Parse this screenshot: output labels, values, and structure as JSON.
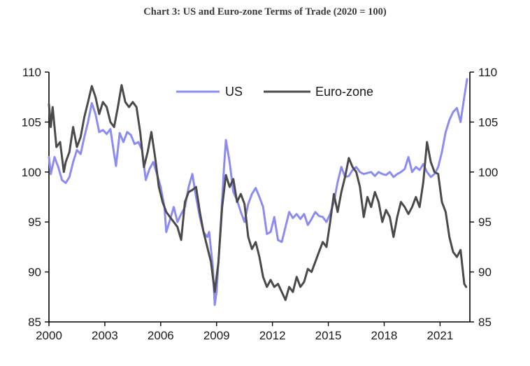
{
  "chart_data": {
    "type": "line",
    "title": "Chart 3: US and Euro-zone Terms of Trade (2020 = 100)",
    "xlabel": "",
    "ylabel": "",
    "x_ticks": [
      "2000",
      "2003",
      "2006",
      "2009",
      "2012",
      "2015",
      "2018",
      "2021"
    ],
    "xlim": [
      2000,
      2022.6
    ],
    "ylim": [
      85,
      110
    ],
    "y_ticks": [
      85,
      90,
      95,
      100,
      105,
      110
    ],
    "y_ticks_right": [
      85,
      90,
      95,
      100,
      105,
      110
    ],
    "legend_position": "top-center",
    "series": [
      {
        "name": "US",
        "color": "#8c8cf0",
        "points": [
          [
            2000.0,
            101.5
          ],
          [
            2000.1,
            99.8
          ],
          [
            2000.3,
            101.5
          ],
          [
            2000.5,
            100.5
          ],
          [
            2000.7,
            99.2
          ],
          [
            2000.9,
            98.9
          ],
          [
            2001.1,
            99.5
          ],
          [
            2001.3,
            101.0
          ],
          [
            2001.5,
            102.2
          ],
          [
            2001.7,
            101.8
          ],
          [
            2001.9,
            103.5
          ],
          [
            2002.1,
            105.0
          ],
          [
            2002.3,
            106.9
          ],
          [
            2002.5,
            105.8
          ],
          [
            2002.7,
            104.0
          ],
          [
            2002.9,
            104.2
          ],
          [
            2003.1,
            103.8
          ],
          [
            2003.3,
            104.3
          ],
          [
            2003.5,
            101.8
          ],
          [
            2003.6,
            100.6
          ],
          [
            2003.8,
            103.9
          ],
          [
            2004.0,
            103.0
          ],
          [
            2004.2,
            104.0
          ],
          [
            2004.4,
            103.7
          ],
          [
            2004.6,
            102.8
          ],
          [
            2004.8,
            103.0
          ],
          [
            2005.0,
            102.2
          ],
          [
            2005.2,
            99.2
          ],
          [
            2005.4,
            100.3
          ],
          [
            2005.6,
            101.0
          ],
          [
            2005.8,
            99.8
          ],
          [
            2006.0,
            98.5
          ],
          [
            2006.2,
            96.5
          ],
          [
            2006.3,
            94.0
          ],
          [
            2006.5,
            95.2
          ],
          [
            2006.7,
            96.5
          ],
          [
            2006.9,
            95.0
          ],
          [
            2007.1,
            95.8
          ],
          [
            2007.3,
            96.5
          ],
          [
            2007.5,
            98.5
          ],
          [
            2007.7,
            99.8
          ],
          [
            2007.9,
            97.5
          ],
          [
            2008.1,
            95.5
          ],
          [
            2008.3,
            94.0
          ],
          [
            2008.5,
            93.5
          ],
          [
            2008.6,
            94.0
          ],
          [
            2008.8,
            90.5
          ],
          [
            2008.9,
            86.7
          ],
          [
            2009.0,
            88.0
          ],
          [
            2009.2,
            94.0
          ],
          [
            2009.4,
            100.5
          ],
          [
            2009.5,
            103.2
          ],
          [
            2009.7,
            101.0
          ],
          [
            2009.9,
            98.0
          ],
          [
            2010.1,
            97.2
          ],
          [
            2010.3,
            96.0
          ],
          [
            2010.5,
            95.0
          ],
          [
            2010.7,
            96.8
          ],
          [
            2010.9,
            97.8
          ],
          [
            2011.1,
            98.4
          ],
          [
            2011.3,
            97.5
          ],
          [
            2011.5,
            96.5
          ],
          [
            2011.7,
            93.8
          ],
          [
            2011.9,
            94.0
          ],
          [
            2012.1,
            95.5
          ],
          [
            2012.3,
            93.2
          ],
          [
            2012.5,
            93.0
          ],
          [
            2012.7,
            94.5
          ],
          [
            2012.9,
            96.0
          ],
          [
            2013.1,
            95.4
          ],
          [
            2013.3,
            95.8
          ],
          [
            2013.5,
            95.3
          ],
          [
            2013.7,
            95.8
          ],
          [
            2013.9,
            94.7
          ],
          [
            2014.1,
            95.3
          ],
          [
            2014.3,
            96.0
          ],
          [
            2014.5,
            95.6
          ],
          [
            2014.7,
            95.5
          ],
          [
            2014.9,
            95.0
          ],
          [
            2015.1,
            95.8
          ],
          [
            2015.3,
            97.0
          ],
          [
            2015.5,
            99.0
          ],
          [
            2015.7,
            100.5
          ],
          [
            2015.9,
            99.5
          ],
          [
            2016.1,
            99.6
          ],
          [
            2016.3,
            100.2
          ],
          [
            2016.5,
            100.5
          ],
          [
            2016.7,
            100.0
          ],
          [
            2016.9,
            99.8
          ],
          [
            2017.1,
            99.9
          ],
          [
            2017.3,
            100.0
          ],
          [
            2017.5,
            99.6
          ],
          [
            2017.7,
            100.0
          ],
          [
            2017.9,
            99.8
          ],
          [
            2018.1,
            99.7
          ],
          [
            2018.3,
            100.0
          ],
          [
            2018.5,
            99.5
          ],
          [
            2018.7,
            99.8
          ],
          [
            2018.9,
            100.0
          ],
          [
            2019.1,
            100.3
          ],
          [
            2019.3,
            101.5
          ],
          [
            2019.5,
            100.0
          ],
          [
            2019.7,
            100.5
          ],
          [
            2019.9,
            100.2
          ],
          [
            2020.1,
            100.8
          ],
          [
            2020.3,
            100.0
          ],
          [
            2020.5,
            99.5
          ],
          [
            2020.7,
            99.8
          ],
          [
            2020.9,
            100.5
          ],
          [
            2021.1,
            102.0
          ],
          [
            2021.3,
            104.0
          ],
          [
            2021.5,
            105.2
          ],
          [
            2021.7,
            106.0
          ],
          [
            2021.9,
            106.4
          ],
          [
            2022.1,
            105.0
          ],
          [
            2022.3,
            107.5
          ],
          [
            2022.45,
            109.3
          ]
        ]
      },
      {
        "name": "Euro-zone",
        "color": "#4a4a4a",
        "points": [
          [
            2000.0,
            106.8
          ],
          [
            2000.1,
            104.5
          ],
          [
            2000.2,
            106.5
          ],
          [
            2000.4,
            102.5
          ],
          [
            2000.6,
            103.0
          ],
          [
            2000.8,
            100.0
          ],
          [
            2000.9,
            101.0
          ],
          [
            2001.1,
            102.0
          ],
          [
            2001.3,
            104.5
          ],
          [
            2001.5,
            102.5
          ],
          [
            2001.7,
            103.5
          ],
          [
            2001.9,
            105.5
          ],
          [
            2002.1,
            107.0
          ],
          [
            2002.3,
            108.6
          ],
          [
            2002.5,
            107.5
          ],
          [
            2002.7,
            105.8
          ],
          [
            2002.9,
            107.0
          ],
          [
            2003.1,
            106.5
          ],
          [
            2003.3,
            105.0
          ],
          [
            2003.5,
            104.5
          ],
          [
            2003.7,
            106.5
          ],
          [
            2003.9,
            108.7
          ],
          [
            2004.1,
            107.0
          ],
          [
            2004.3,
            106.5
          ],
          [
            2004.5,
            107.0
          ],
          [
            2004.7,
            106.5
          ],
          [
            2004.9,
            104.0
          ],
          [
            2005.1,
            100.5
          ],
          [
            2005.3,
            102.0
          ],
          [
            2005.5,
            104.0
          ],
          [
            2005.7,
            101.5
          ],
          [
            2005.9,
            98.5
          ],
          [
            2006.1,
            97.0
          ],
          [
            2006.3,
            96.0
          ],
          [
            2006.5,
            95.5
          ],
          [
            2006.7,
            95.0
          ],
          [
            2006.9,
            94.5
          ],
          [
            2007.1,
            93.2
          ],
          [
            2007.3,
            97.0
          ],
          [
            2007.5,
            98.0
          ],
          [
            2007.7,
            98.2
          ],
          [
            2007.9,
            98.5
          ],
          [
            2008.1,
            96.0
          ],
          [
            2008.3,
            94.0
          ],
          [
            2008.5,
            92.5
          ],
          [
            2008.7,
            91.0
          ],
          [
            2008.9,
            88.0
          ],
          [
            2009.1,
            91.0
          ],
          [
            2009.3,
            96.5
          ],
          [
            2009.5,
            99.7
          ],
          [
            2009.7,
            98.5
          ],
          [
            2009.9,
            99.3
          ],
          [
            2010.1,
            97.0
          ],
          [
            2010.3,
            97.8
          ],
          [
            2010.5,
            96.8
          ],
          [
            2010.7,
            93.5
          ],
          [
            2010.9,
            92.3
          ],
          [
            2011.1,
            93.0
          ],
          [
            2011.3,
            91.5
          ],
          [
            2011.5,
            89.5
          ],
          [
            2011.7,
            88.5
          ],
          [
            2011.9,
            89.2
          ],
          [
            2012.1,
            88.5
          ],
          [
            2012.3,
            88.8
          ],
          [
            2012.5,
            88.0
          ],
          [
            2012.7,
            87.2
          ],
          [
            2012.9,
            88.5
          ],
          [
            2013.1,
            88.0
          ],
          [
            2013.3,
            89.5
          ],
          [
            2013.5,
            88.5
          ],
          [
            2013.7,
            89.0
          ],
          [
            2013.9,
            90.3
          ],
          [
            2014.1,
            90.0
          ],
          [
            2014.3,
            91.0
          ],
          [
            2014.5,
            92.0
          ],
          [
            2014.7,
            93.0
          ],
          [
            2014.9,
            92.5
          ],
          [
            2015.1,
            95.0
          ],
          [
            2015.3,
            97.8
          ],
          [
            2015.5,
            96.0
          ],
          [
            2015.7,
            98.0
          ],
          [
            2015.9,
            99.5
          ],
          [
            2016.1,
            101.4
          ],
          [
            2016.3,
            100.5
          ],
          [
            2016.5,
            100.0
          ],
          [
            2016.7,
            98.5
          ],
          [
            2016.9,
            95.5
          ],
          [
            2017.1,
            97.5
          ],
          [
            2017.3,
            96.5
          ],
          [
            2017.5,
            98.0
          ],
          [
            2017.7,
            97.0
          ],
          [
            2017.9,
            95.0
          ],
          [
            2018.1,
            96.2
          ],
          [
            2018.3,
            95.5
          ],
          [
            2018.5,
            93.5
          ],
          [
            2018.7,
            95.5
          ],
          [
            2018.9,
            97.0
          ],
          [
            2019.1,
            96.5
          ],
          [
            2019.3,
            95.8
          ],
          [
            2019.5,
            96.5
          ],
          [
            2019.7,
            97.5
          ],
          [
            2019.9,
            96.5
          ],
          [
            2020.1,
            99.0
          ],
          [
            2020.3,
            103.0
          ],
          [
            2020.5,
            101.0
          ],
          [
            2020.7,
            100.0
          ],
          [
            2020.9,
            99.8
          ],
          [
            2021.1,
            97.0
          ],
          [
            2021.3,
            96.0
          ],
          [
            2021.5,
            93.5
          ],
          [
            2021.7,
            92.0
          ],
          [
            2021.9,
            91.5
          ],
          [
            2022.1,
            92.2
          ],
          [
            2022.3,
            88.8
          ],
          [
            2022.4,
            88.5
          ]
        ]
      }
    ]
  }
}
